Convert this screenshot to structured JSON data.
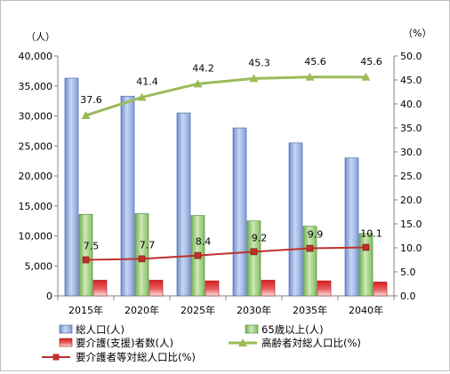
{
  "chart_data": {
    "type": "bar+line",
    "categories": [
      "2015年",
      "2020年",
      "2025年",
      "2030年",
      "2035年",
      "2040年"
    ],
    "left_axis": {
      "unit": "（人）",
      "min": 0,
      "max": 40000,
      "step": 5000,
      "ticks": [
        "0",
        "5,000",
        "10,000",
        "15,000",
        "20,000",
        "25,000",
        "30,000",
        "35,000",
        "40,000"
      ]
    },
    "right_axis": {
      "unit": "（%）",
      "min": 0,
      "max": 50,
      "step": 5,
      "ticks": [
        "0.0",
        "5.0",
        "10.0",
        "15.0",
        "20.0",
        "25.0",
        "30.0",
        "35.0",
        "40.0",
        "45.0",
        "50.0"
      ]
    },
    "bar_series": [
      {
        "name": "総人口(人)",
        "values": [
          36300,
          33300,
          30500,
          28000,
          25500,
          23000
        ],
        "color": "#7f9fdc"
      },
      {
        "name": "65歳以上(人)",
        "values": [
          13600,
          13700,
          13400,
          12500,
          11600,
          10400
        ],
        "color": "#7fbf5f"
      },
      {
        "name": "要介護(支援)者数(人)",
        "values": [
          2600,
          2600,
          2500,
          2600,
          2500,
          2300
        ],
        "color": "#d92b2b"
      }
    ],
    "line_series": [
      {
        "name": "高齢者対総人口比(%)",
        "values": [
          37.6,
          41.4,
          44.2,
          45.3,
          45.6,
          45.6
        ],
        "labels": [
          "37.6",
          "41.4",
          "44.2",
          "45.3",
          "45.6",
          "45.6"
        ],
        "color": "#9bbb59",
        "marker": "triangle"
      },
      {
        "name": "要介護者等対総人口比(%)",
        "values": [
          7.5,
          7.7,
          8.4,
          9.2,
          9.9,
          10.1
        ],
        "labels": [
          "7.5",
          "7.7",
          "8.4",
          "9.2",
          "9.9",
          "10.1"
        ],
        "color": "#c0302a",
        "marker": "square"
      }
    ],
    "grid": false,
    "legend_position": "bottom"
  }
}
